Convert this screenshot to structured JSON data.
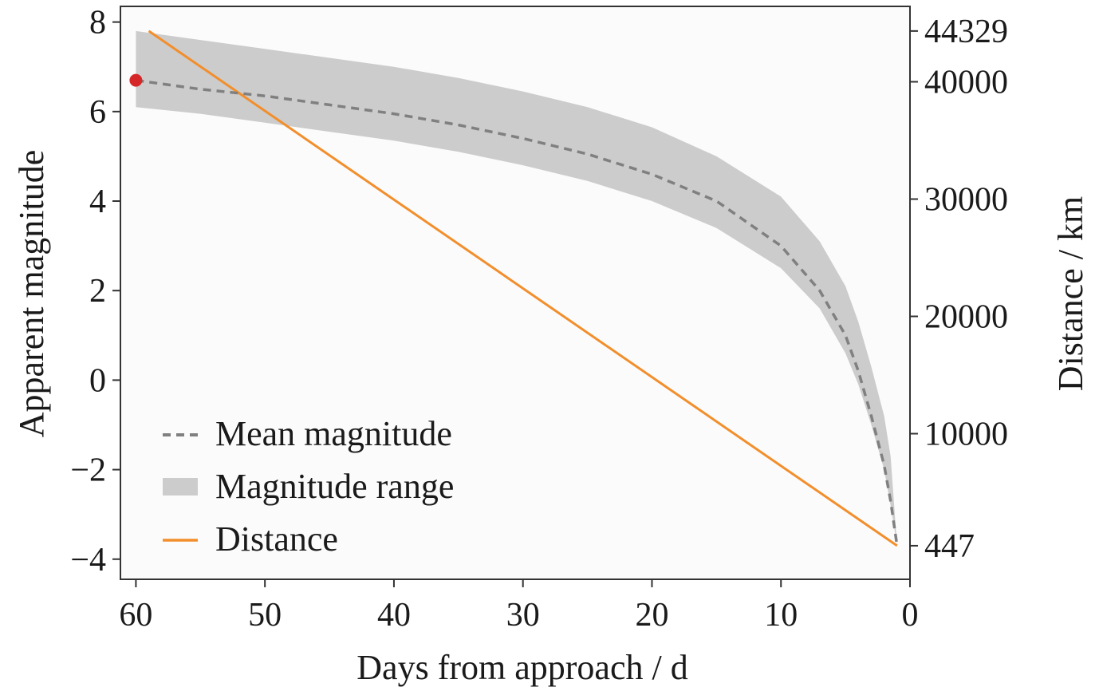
{
  "chart_data": {
    "type": "line",
    "xlabel": "Days from approach / d",
    "ylabel_left": "Apparent magnitude",
    "ylabel_right": "Distance / km",
    "x_axis": {
      "inverted": true,
      "range": [
        61.2,
        0
      ],
      "ticks": [
        60,
        50,
        40,
        30,
        20,
        10,
        0
      ]
    },
    "y_left": {
      "range": [
        -4.45,
        8.35
      ],
      "ticks": [
        -4,
        -2,
        0,
        2,
        4,
        6,
        8
      ]
    },
    "y_right": {
      "ticks": [
        447,
        10000,
        20000,
        30000,
        40000,
        44329
      ]
    },
    "grid": false,
    "legend_position": "bottom-left",
    "colors": {
      "plot_background": "#fbfbfb",
      "mean_line": "#808080",
      "range_fill": "#cccccc",
      "distance_line": "#f28e2b",
      "start_point": "#d62728",
      "axes": "#333333"
    },
    "series": [
      {
        "name": "Mean magnitude",
        "axis": "left",
        "style": "dashed",
        "x": [
          60,
          55,
          50,
          45,
          40,
          35,
          30,
          25,
          20,
          15,
          10,
          7,
          5,
          4,
          3,
          2,
          1.5,
          1
        ],
        "y": [
          6.7,
          6.5,
          6.35,
          6.15,
          5.95,
          5.7,
          5.4,
          5.05,
          4.6,
          4.0,
          3.0,
          2.0,
          1.0,
          0.2,
          -0.8,
          -1.9,
          -2.7,
          -3.7
        ]
      },
      {
        "name": "Magnitude range",
        "axis": "left",
        "style": "band",
        "x": [
          60,
          55,
          50,
          45,
          40,
          35,
          30,
          25,
          20,
          15,
          10,
          7,
          5,
          4,
          3,
          2,
          1.5,
          1
        ],
        "upper": [
          7.8,
          7.6,
          7.4,
          7.2,
          7.0,
          6.75,
          6.45,
          6.1,
          5.65,
          5.0,
          4.1,
          3.1,
          2.1,
          1.3,
          0.3,
          -0.8,
          -1.7,
          -3.7
        ],
        "lower": [
          6.1,
          5.95,
          5.75,
          5.55,
          5.35,
          5.1,
          4.8,
          4.45,
          4.0,
          3.4,
          2.5,
          1.6,
          0.6,
          -0.1,
          -1.0,
          -2.0,
          -2.8,
          -3.7
        ]
      },
      {
        "name": "Distance",
        "axis": "right",
        "style": "solid",
        "x": [
          59,
          1
        ],
        "y": [
          44329,
          447
        ]
      }
    ],
    "start_point": {
      "x": 60,
      "y": 6.7
    }
  }
}
